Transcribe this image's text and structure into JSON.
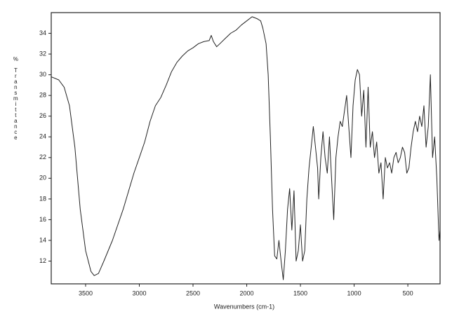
{
  "chart_data": {
    "type": "line",
    "xlabel": "Wavenumbers (cm-1)",
    "ylabel": "% Transmittance",
    "xlim": [
      3820,
      200
    ],
    "ylim": [
      9.8,
      36
    ],
    "xticks": [
      3500,
      3000,
      2500,
      2000,
      1500,
      1000,
      500
    ],
    "yticks": [
      12,
      14,
      16,
      18,
      20,
      22,
      24,
      26,
      28,
      30,
      32,
      34
    ],
    "grid": false,
    "x": [
      3820,
      3750,
      3700,
      3650,
      3600,
      3550,
      3500,
      3450,
      3420,
      3380,
      3330,
      3250,
      3150,
      3050,
      3000,
      2950,
      2900,
      2850,
      2800,
      2750,
      2700,
      2650,
      2600,
      2550,
      2500,
      2450,
      2400,
      2350,
      2330,
      2310,
      2280,
      2250,
      2200,
      2150,
      2100,
      2050,
      2000,
      1950,
      1900,
      1870,
      1850,
      1820,
      1800,
      1780,
      1760,
      1740,
      1720,
      1700,
      1680,
      1660,
      1640,
      1620,
      1600,
      1580,
      1560,
      1540,
      1520,
      1500,
      1480,
      1460,
      1440,
      1420,
      1400,
      1380,
      1360,
      1340,
      1330,
      1310,
      1290,
      1270,
      1250,
      1230,
      1210,
      1190,
      1170,
      1150,
      1130,
      1110,
      1090,
      1070,
      1050,
      1030,
      1010,
      990,
      970,
      950,
      930,
      910,
      890,
      870,
      850,
      830,
      810,
      790,
      770,
      750,
      730,
      710,
      690,
      670,
      650,
      630,
      610,
      590,
      570,
      550,
      530,
      510,
      490,
      470,
      450,
      430,
      410,
      390,
      370,
      350,
      330,
      310,
      290,
      270,
      250,
      230,
      210,
      200
    ],
    "series": [
      {
        "color": "#222222",
        "values": [
          29.8,
          29.5,
          28.8,
          27,
          23,
          17,
          13,
          11,
          10.6,
          10.8,
          12,
          14,
          17,
          20.5,
          22,
          23.5,
          25.5,
          27,
          27.8,
          29,
          30.3,
          31.2,
          31.8,
          32.3,
          32.6,
          33,
          33.2,
          33.3,
          33.8,
          33.2,
          32.7,
          33,
          33.5,
          34,
          34.3,
          34.8,
          35.2,
          35.6,
          35.4,
          35.2,
          34.5,
          33,
          30,
          24,
          17,
          12.5,
          12.2,
          14,
          12,
          10.2,
          13,
          17,
          19,
          15,
          18.8,
          12,
          13,
          15.5,
          12,
          13,
          18,
          21,
          23,
          25,
          23,
          21,
          18,
          22,
          24.5,
          22,
          20.5,
          24,
          20,
          16,
          22,
          24,
          25.5,
          25,
          26.5,
          28,
          25,
          22,
          27,
          29.5,
          30.5,
          30,
          26,
          28.5,
          23,
          28.8,
          23,
          24.5,
          22,
          23.5,
          20.5,
          21.5,
          18,
          22,
          21,
          21.5,
          20.5,
          22,
          22.5,
          21.5,
          22,
          23,
          22.5,
          20.5,
          21,
          23,
          24.5,
          25.5,
          24.5,
          26,
          25,
          27,
          23,
          25,
          30,
          22,
          24,
          20,
          14,
          15
        ]
      }
    ]
  }
}
